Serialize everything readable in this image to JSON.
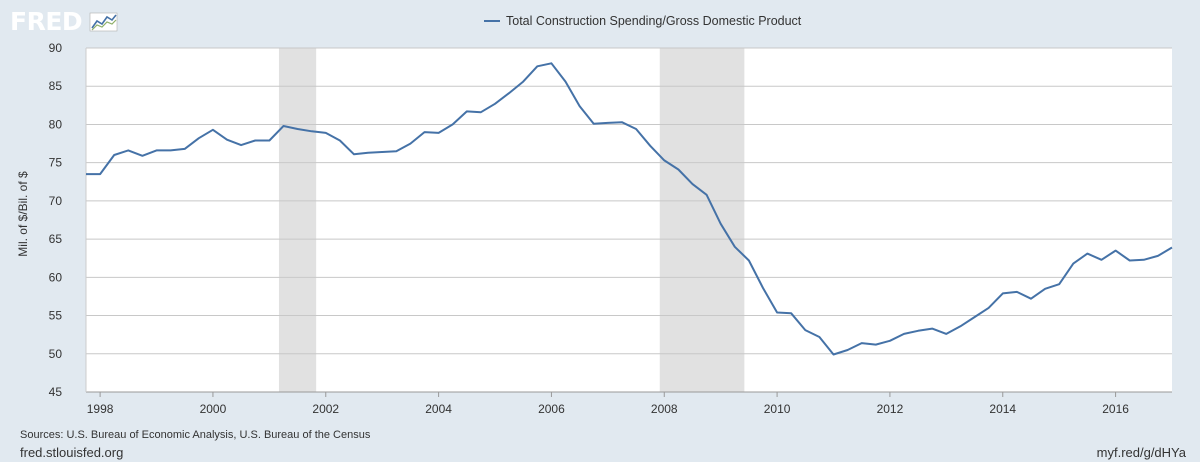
{
  "header": {
    "logo_text": "FRED",
    "logo_mark": "chart-line-icon"
  },
  "footer": {
    "sources": "Sources: U.S. Bureau of Economic Analysis, U.S. Bureau of the Census",
    "site": "fred.stlouisfed.org",
    "short_link": "myf.red/g/dHYa"
  },
  "colors": {
    "series": "#4572a7",
    "recession": "#e1e1e1",
    "grid": "#c8c8c8",
    "plot_bg": "#ffffff",
    "page_bg": "#e1e9f0"
  },
  "chart_data": {
    "type": "line",
    "title": "",
    "xlabel": "",
    "ylabel": "Mil. of $/Bil. of $",
    "xlim": [
      1997.75,
      2017.0
    ],
    "ylim": [
      45,
      90
    ],
    "y_ticks": [
      45,
      50,
      55,
      60,
      65,
      70,
      75,
      80,
      85,
      90
    ],
    "x_ticks": [
      1998,
      2000,
      2002,
      2004,
      2006,
      2008,
      2010,
      2012,
      2014,
      2016
    ],
    "grid": true,
    "legend_position": "top-center",
    "recessions": [
      [
        2001.17,
        2001.83
      ],
      [
        2007.92,
        2009.42
      ]
    ],
    "series": [
      {
        "name": "Total Construction Spending/Gross Domestic Product",
        "x": [
          1997.75,
          1998.0,
          1998.25,
          1998.5,
          1998.75,
          1999.0,
          1999.25,
          1999.5,
          1999.75,
          2000.0,
          2000.25,
          2000.5,
          2000.75,
          2001.0,
          2001.25,
          2001.5,
          2001.75,
          2002.0,
          2002.25,
          2002.5,
          2002.75,
          2003.0,
          2003.25,
          2003.5,
          2003.75,
          2004.0,
          2004.25,
          2004.5,
          2004.75,
          2005.0,
          2005.25,
          2005.5,
          2005.75,
          2006.0,
          2006.25,
          2006.5,
          2006.75,
          2007.0,
          2007.25,
          2007.5,
          2007.75,
          2008.0,
          2008.25,
          2008.5,
          2008.75,
          2009.0,
          2009.25,
          2009.5,
          2009.75,
          2010.0,
          2010.25,
          2010.5,
          2010.75,
          2011.0,
          2011.25,
          2011.5,
          2011.75,
          2012.0,
          2012.25,
          2012.5,
          2012.75,
          2013.0,
          2013.25,
          2013.5,
          2013.75,
          2014.0,
          2014.25,
          2014.5,
          2014.75,
          2015.0,
          2015.25,
          2015.5,
          2015.75,
          2016.0,
          2016.25,
          2016.5,
          2016.75,
          2017.0
        ],
        "values": [
          73.5,
          73.5,
          76.0,
          76.6,
          75.9,
          76.6,
          76.6,
          76.8,
          78.2,
          79.3,
          78.0,
          77.3,
          77.9,
          77.9,
          79.8,
          79.4,
          79.1,
          78.9,
          77.9,
          76.1,
          76.3,
          76.4,
          76.5,
          77.5,
          79.0,
          78.9,
          80.0,
          81.7,
          81.6,
          82.7,
          84.1,
          85.6,
          87.6,
          88.0,
          85.6,
          82.4,
          80.1,
          80.2,
          80.3,
          79.4,
          77.2,
          75.3,
          74.1,
          72.2,
          70.8,
          67.0,
          64.0,
          62.2,
          58.6,
          55.4,
          55.3,
          53.1,
          52.2,
          49.9,
          50.5,
          51.4,
          51.2,
          51.7,
          52.6,
          53.0,
          53.3,
          52.6,
          53.6,
          54.8,
          56.0,
          57.9,
          58.1,
          57.2,
          58.5,
          59.1,
          61.8,
          63.1,
          62.3,
          63.5,
          62.2,
          62.3,
          62.8,
          63.9
        ]
      }
    ]
  }
}
